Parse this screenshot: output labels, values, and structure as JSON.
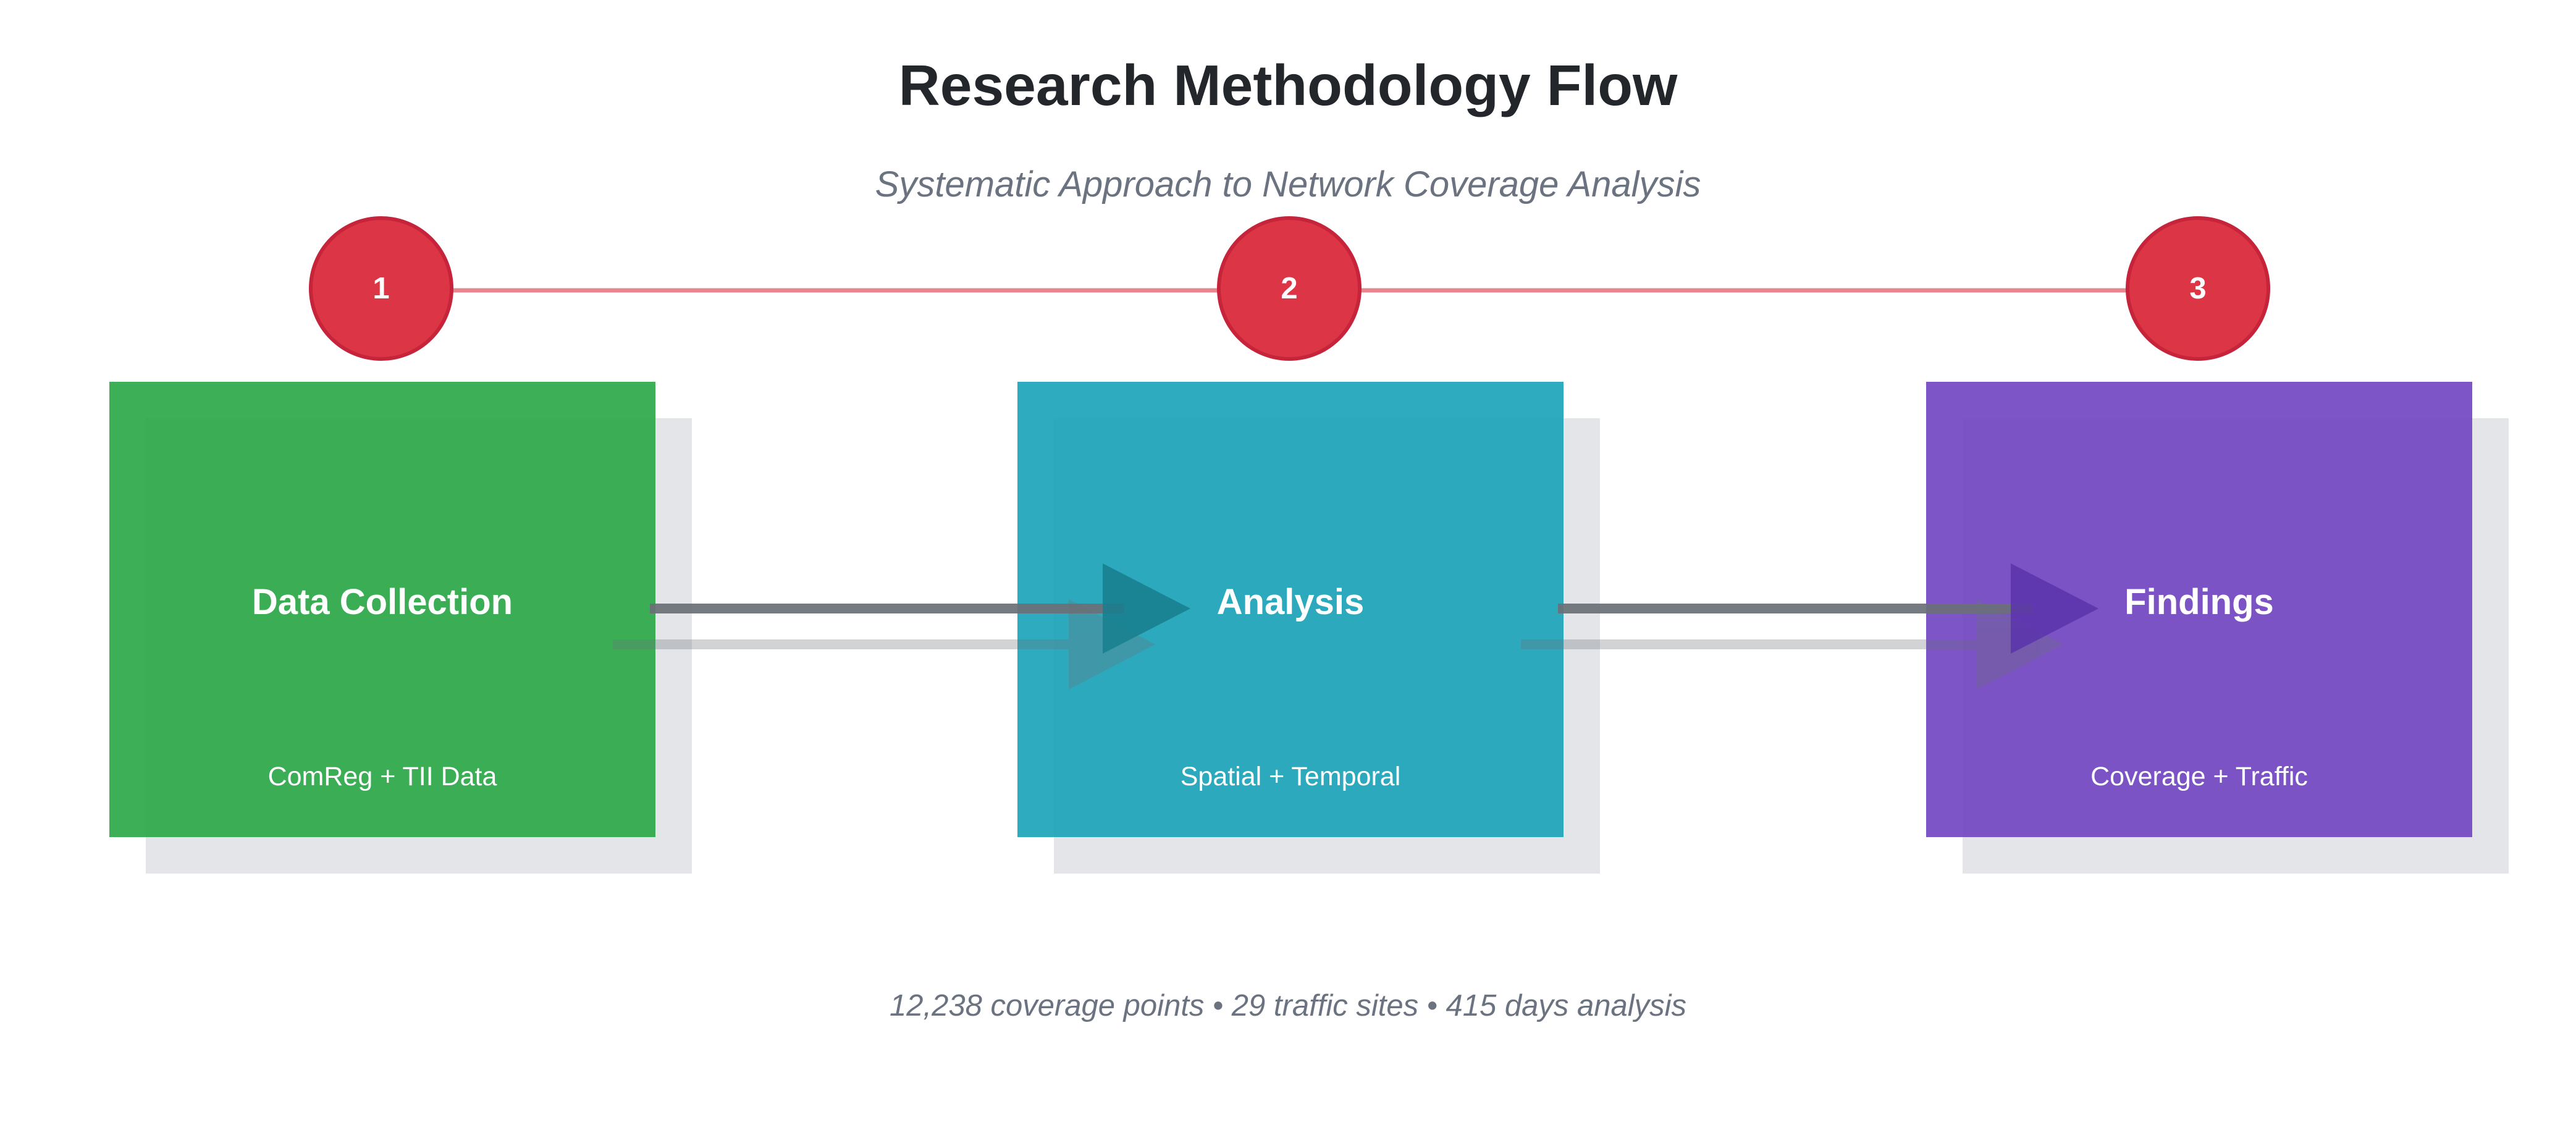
{
  "title": "Research Methodology Flow",
  "subtitle": "Systematic Approach to Network Coverage Analysis",
  "steps": [
    {
      "number": "1",
      "title": "Data Collection",
      "subtitle": "ComReg + TII Data",
      "color": "#28a745"
    },
    {
      "number": "2",
      "title": "Analysis",
      "subtitle": "Spatial + Temporal",
      "color": "#17a2b8"
    },
    {
      "number": "3",
      "title": "Findings",
      "subtitle": "Coverage + Traffic",
      "color": "#6f42c1"
    }
  ],
  "colors": {
    "badge": "#dc3545",
    "timeline": "#e8868f",
    "arrow": "#6b7078",
    "shadow": "#9ca3af"
  },
  "footer": "12,238 coverage points • 29 traffic sites • 415 days analysis"
}
